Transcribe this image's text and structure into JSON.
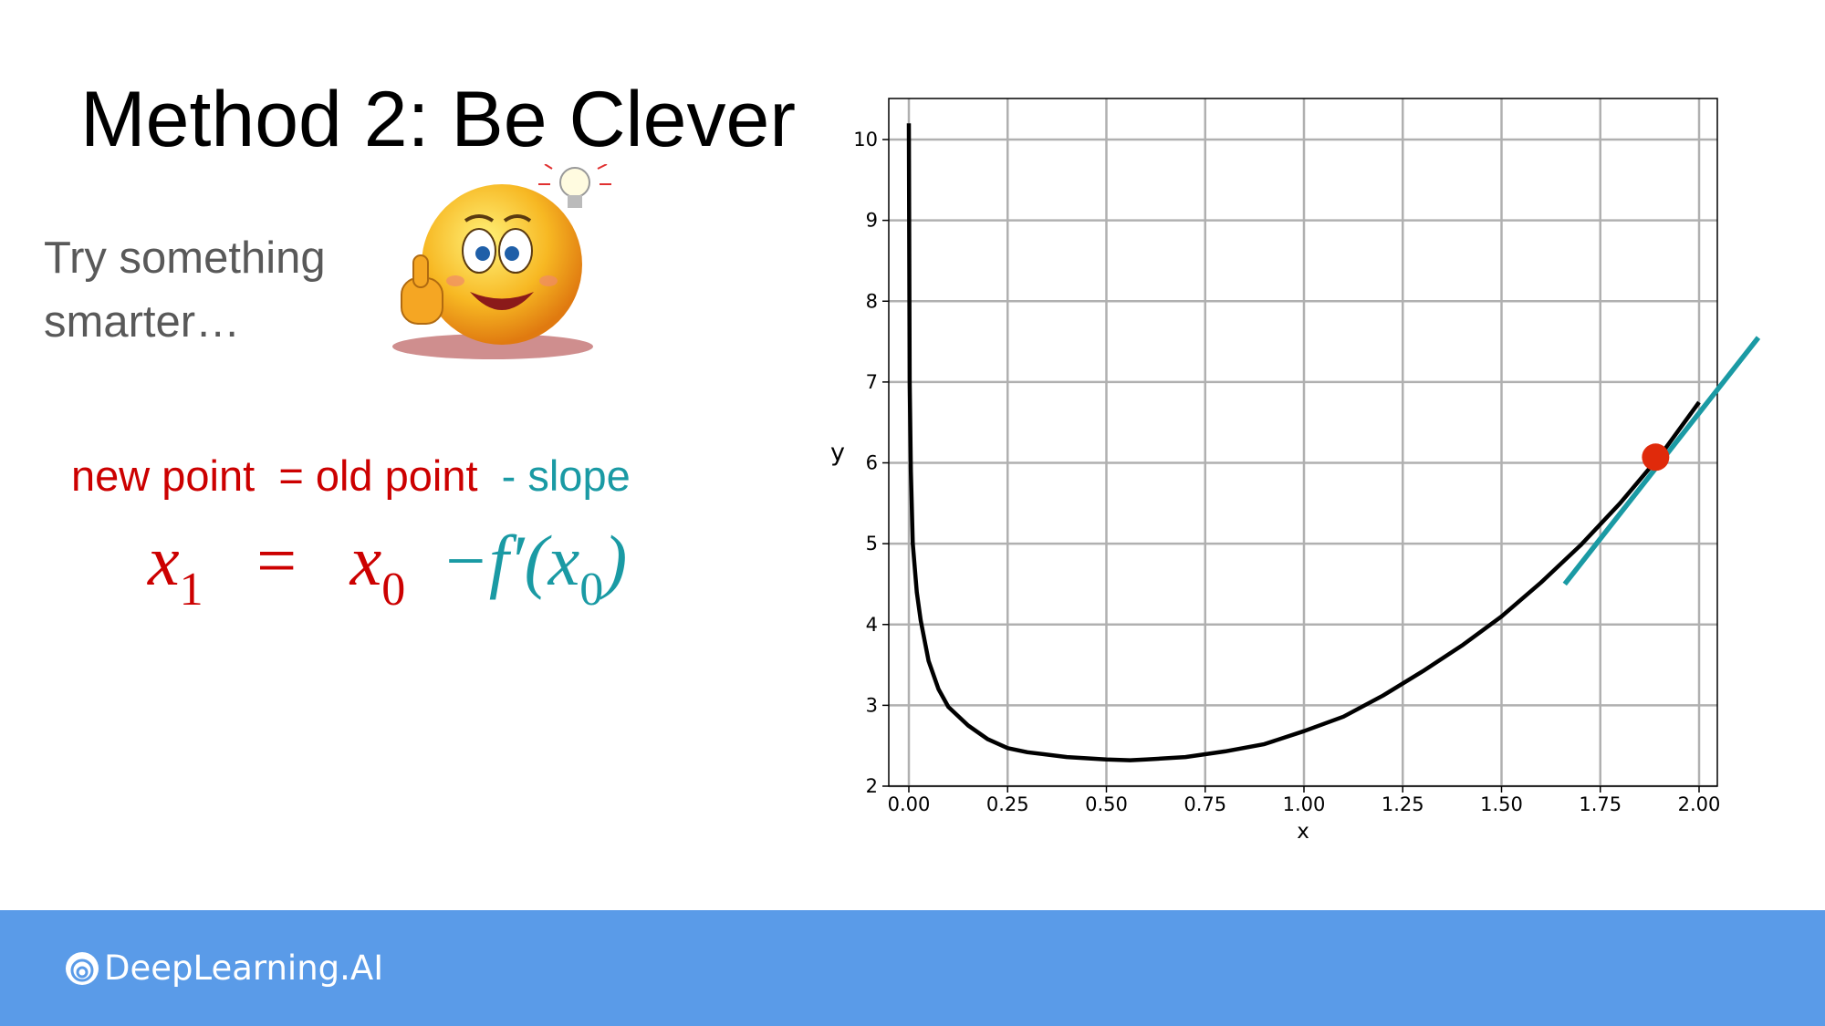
{
  "slide": {
    "title": "Method 2: Be Clever",
    "subtitle": "Try something smarter…"
  },
  "formula": {
    "new_point": "new point",
    "equals_old": "= old point",
    "minus_slope": "- slope",
    "lhs_var": "x",
    "lhs_sub": "1",
    "eq_sign": "=",
    "rhs_var": "x",
    "rhs_sub": "0",
    "deriv_prefix": "−f′(x",
    "deriv_sub": "0",
    "deriv_close": ")"
  },
  "footer": {
    "brand": "DeepLearning.AI"
  },
  "colors": {
    "red": "#cc0000",
    "teal": "#1a9aa4",
    "footer_bg": "#5a9be8",
    "marker": "#e02a0b"
  },
  "chart_data": {
    "type": "line",
    "title": "",
    "xlabel": "x",
    "ylabel": "y",
    "xlim": [
      0.0,
      2.0
    ],
    "ylim": [
      2,
      10
    ],
    "grid": true,
    "xticks": [
      "0.00",
      "0.25",
      "0.50",
      "0.75",
      "1.00",
      "1.25",
      "1.50",
      "1.75",
      "2.00"
    ],
    "yticks": [
      "2",
      "3",
      "4",
      "5",
      "6",
      "7",
      "8",
      "9",
      "10"
    ],
    "series": [
      {
        "x": [
          0.0,
          0.002,
          0.005,
          0.01,
          0.02,
          0.03,
          0.05,
          0.075,
          0.1,
          0.15,
          0.2,
          0.25,
          0.3,
          0.4,
          0.5,
          0.56,
          0.6,
          0.7,
          0.8,
          0.9,
          1.0,
          1.1,
          1.2,
          1.3,
          1.4,
          1.5,
          1.6,
          1.7,
          1.8,
          1.9,
          2.0
        ],
        "y": [
          10.2,
          7.0,
          5.9,
          5.0,
          4.4,
          4.05,
          3.55,
          3.2,
          2.98,
          2.75,
          2.58,
          2.47,
          2.42,
          2.36,
          2.33,
          2.32,
          2.33,
          2.36,
          2.43,
          2.52,
          2.68,
          2.86,
          3.12,
          3.42,
          3.74,
          4.1,
          4.52,
          4.98,
          5.5,
          6.08,
          6.75
        ],
        "color": "#000000"
      }
    ],
    "point": {
      "x": 1.89,
      "y": 6.07,
      "color": "#e02a0b"
    },
    "tangent": {
      "x": [
        1.66,
        2.15
      ],
      "y": [
        4.5,
        7.55
      ],
      "color": "#1a9aa4"
    }
  }
}
